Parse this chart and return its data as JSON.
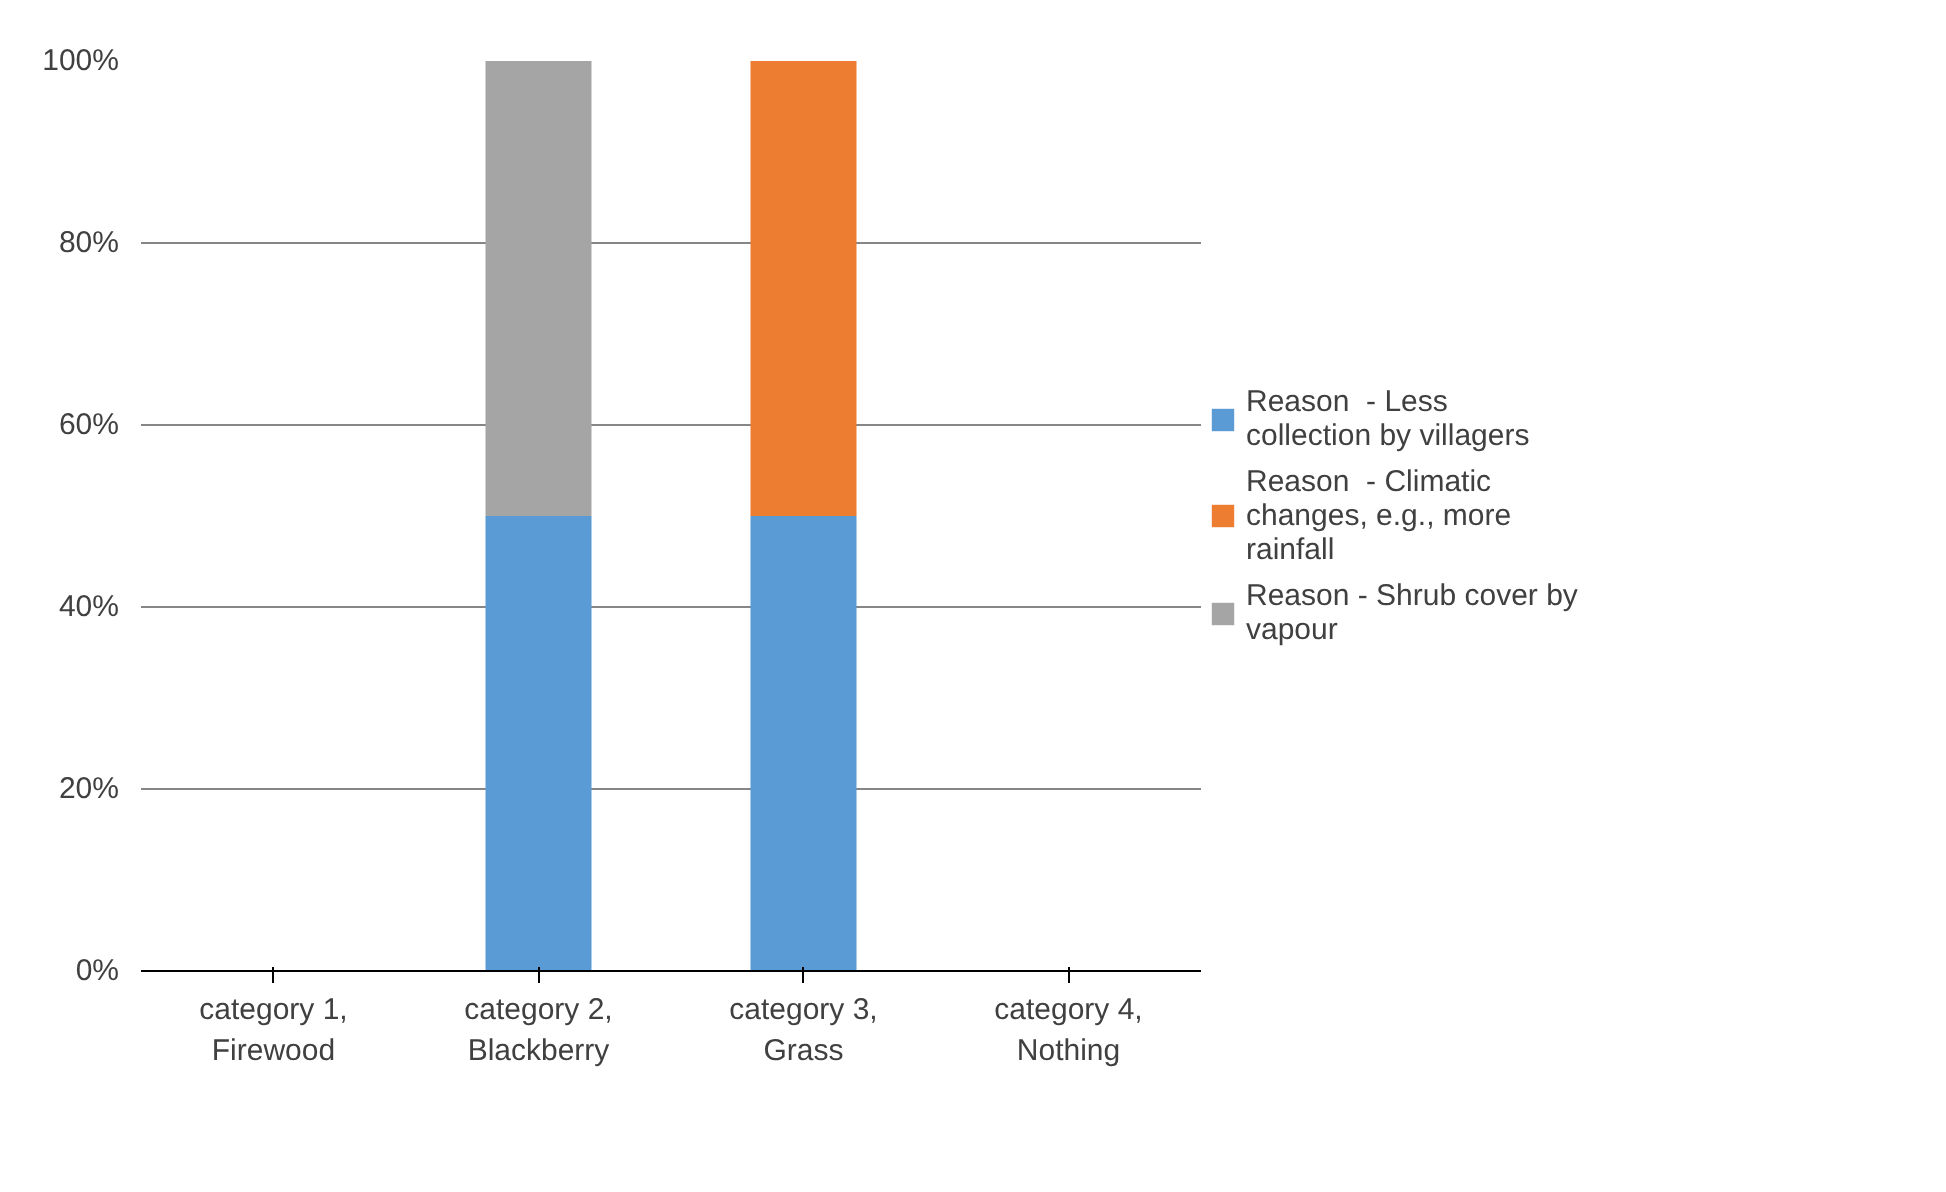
{
  "chart_data": {
    "type": "bar",
    "stacked": true,
    "categories": [
      "category 1, Firewood",
      "category 2, Blackberry",
      "category 3, Grass",
      "category 4, Nothing"
    ],
    "series": [
      {
        "name": "Reason  - Less collection by villagers",
        "color": "#5b9bd5",
        "values": [
          0,
          50,
          50,
          0
        ]
      },
      {
        "name": "Reason  - Climatic changes, e.g., more rainfall",
        "color": "#ed7d31",
        "values": [
          0,
          0,
          50,
          0
        ]
      },
      {
        "name": "Reason - Shrub cover by vapour",
        "color": "#a5a5a5",
        "values": [
          0,
          50,
          0,
          0
        ]
      }
    ],
    "ylim": [
      0,
      100
    ],
    "yticks": [
      {
        "value": 0,
        "label": "0%"
      },
      {
        "value": 20,
        "label": "20%"
      },
      {
        "value": 40,
        "label": "40%"
      },
      {
        "value": 60,
        "label": "60%"
      },
      {
        "value": 80,
        "label": "80%"
      },
      {
        "value": 100,
        "label": "100%"
      }
    ],
    "grid": "y",
    "legend": "right"
  }
}
